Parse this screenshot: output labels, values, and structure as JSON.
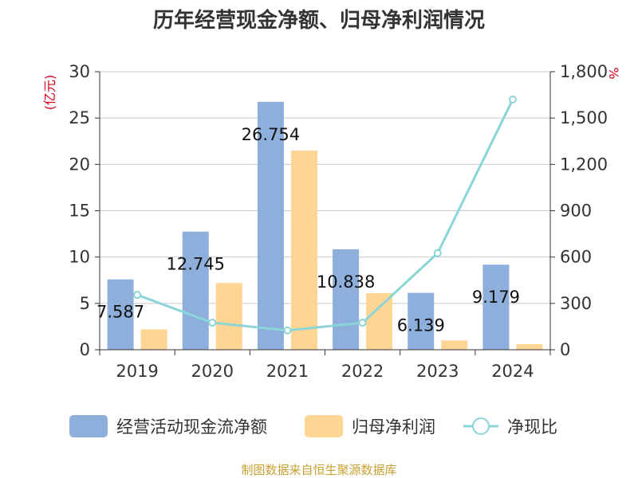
{
  "chart_data": {
    "type": "bar",
    "title": "历年经营现金净额、归母净利润情况",
    "categories": [
      "2019",
      "2020",
      "2021",
      "2022",
      "2023",
      "2024"
    ],
    "left_axis": {
      "unit": "(亿元)",
      "ylim": [
        0,
        30
      ],
      "ticks": [
        0,
        5,
        10,
        15,
        20,
        25,
        30
      ]
    },
    "right_axis": {
      "unit": "%",
      "ylim": [
        0,
        1800
      ],
      "ticks": [
        "0",
        "300",
        "600",
        "900",
        "1,200",
        "1,500",
        "1,800"
      ],
      "tick_values": [
        0,
        300,
        600,
        900,
        1200,
        1500,
        1800
      ]
    },
    "grid": true,
    "legend_position": "bottom",
    "series": [
      {
        "name": "经营活动现金流净额",
        "type": "bar",
        "axis": "left",
        "color": "#8eaedb",
        "values": [
          7.587,
          12.745,
          26.754,
          10.838,
          6.139,
          9.179
        ],
        "labels": [
          "7.587",
          "12.745",
          "26.754",
          "10.838",
          "6.139",
          "9.179"
        ]
      },
      {
        "name": "归母净利润",
        "type": "bar",
        "axis": "left",
        "color": "#ffd593",
        "values": [
          2.2,
          7.2,
          21.5,
          6.1,
          1.0,
          0.6
        ]
      },
      {
        "name": "净现比",
        "type": "line",
        "axis": "right",
        "color": "#8ad5d8",
        "values": [
          355,
          175,
          125,
          175,
          625,
          1620
        ]
      }
    ],
    "source": "制图数据来自恒生聚源数据库"
  }
}
